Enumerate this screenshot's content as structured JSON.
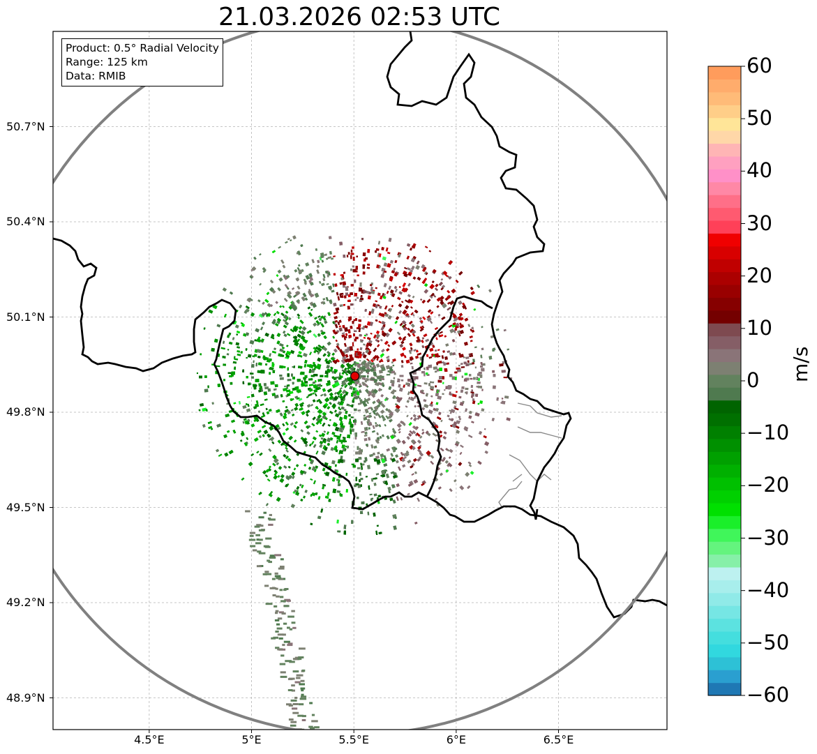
{
  "title": "21.03.2026 02:53 UTC",
  "info": {
    "product": "Product: 0.5° Radial Velocity",
    "range": "Range: 125 km",
    "data": "Data: RMIB"
  },
  "axes": {
    "lon_range": [
      4.03,
      7.03
    ],
    "lat_range": [
      48.8,
      51.0
    ],
    "x_ticks": [
      {
        "value": 4.5,
        "label": "4.5°E"
      },
      {
        "value": 5.0,
        "label": "5°E"
      },
      {
        "value": 5.5,
        "label": "5.5°E"
      },
      {
        "value": 6.0,
        "label": "6°E"
      },
      {
        "value": 6.5,
        "label": "6.5°E"
      }
    ],
    "y_ticks": [
      {
        "value": 50.7,
        "label": "50.7°N"
      },
      {
        "value": 50.4,
        "label": "50.4°N"
      },
      {
        "value": 50.1,
        "label": "50.1°N"
      },
      {
        "value": 49.8,
        "label": "49.8°N"
      },
      {
        "value": 49.5,
        "label": "49.5°N"
      },
      {
        "value": 49.2,
        "label": "49.2°N"
      },
      {
        "value": 48.9,
        "label": "48.9°N"
      }
    ]
  },
  "radar": {
    "site": {
      "lon": 5.505,
      "lat": 49.914
    },
    "range_km": 125,
    "site_color": "#e00000"
  },
  "colorbar": {
    "unit": "m/s",
    "vmin": -60,
    "vmax": 60,
    "ticks": [
      60,
      50,
      40,
      30,
      20,
      10,
      0,
      -10,
      -20,
      -30,
      -40,
      -50,
      -60
    ],
    "tick_labels": [
      "60",
      "50",
      "40",
      "30",
      "20",
      "10",
      "0",
      "−10",
      "−20",
      "−30",
      "−40",
      "−50",
      "−60"
    ],
    "colors": [
      "#1f78b4",
      "#2a9fd0",
      "#2dc1d6",
      "#31d8df",
      "#44dede",
      "#5ce2e0",
      "#76e6e4",
      "#90eae8",
      "#a8eeec",
      "#bdf1f0",
      "#86f0a8",
      "#64f47e",
      "#40f65a",
      "#1aef2a",
      "#00e000",
      "#00d000",
      "#00c000",
      "#00b000",
      "#00a000",
      "#009000",
      "#008000",
      "#007000",
      "#006400",
      "#4f7a4f",
      "#62825e",
      "#7d8072",
      "#8a7478",
      "#855e66",
      "#7e4a50",
      "#740000",
      "#860000",
      "#990000",
      "#ab0000",
      "#c00000",
      "#d80000",
      "#f00000",
      "#ff4058",
      "#ff5a70",
      "#ff6f88",
      "#ff88a6",
      "#ff90c8",
      "#ffa0c0",
      "#ffb5b5",
      "#ffd7a8",
      "#ffe598",
      "#ffce88",
      "#ffbb78",
      "#ffac6c",
      "#ff9c5c"
    ]
  },
  "map": {
    "gridline_color": "#b4b4b4",
    "border_color": "#000000",
    "range_ring_color": "#808080"
  }
}
